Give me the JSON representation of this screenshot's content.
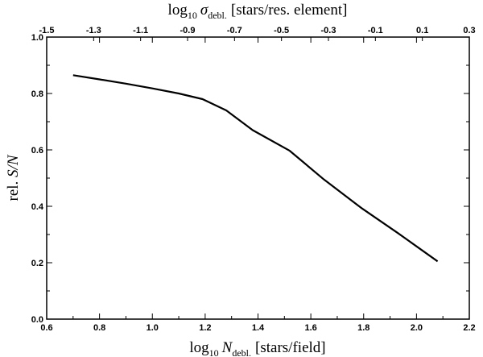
{
  "chart_data": {
    "type": "line",
    "xlabel": {
      "pre": "log",
      "sub": "10",
      "sym": "N",
      "symsub": "debl.",
      "post": "[stars/field]"
    },
    "x2label": {
      "pre": "log",
      "sub": "10",
      "sym": "σ",
      "symsub": "debl.",
      "post": "[stars/res. element]"
    },
    "ylabel": {
      "pre": "rel. ",
      "sym": "S/N"
    },
    "xlim": [
      0.6,
      2.2
    ],
    "ylim": [
      0.0,
      1.0
    ],
    "x2lim": [
      -1.5,
      0.3
    ],
    "xticks": [
      "0.6",
      "0.8",
      "1.0",
      "1.2",
      "1.4",
      "1.6",
      "1.8",
      "2.0",
      "2.2"
    ],
    "x2ticks": [
      "-1.5",
      "-1.3",
      "-1.1",
      "-0.9",
      "-0.7",
      "-0.5",
      "-0.3",
      "-0.1",
      "0.1",
      "0.3"
    ],
    "yticks": [
      "0.0",
      "0.2",
      "0.4",
      "0.6",
      "0.8",
      "1.0"
    ],
    "grid": false,
    "series": [
      {
        "x": [
          0.7,
          0.8,
          0.9,
          1.0,
          1.1,
          1.19,
          1.28,
          1.38,
          1.52,
          1.65,
          1.79,
          1.93,
          2.08
        ],
        "y": [
          0.865,
          0.85,
          0.835,
          0.818,
          0.8,
          0.78,
          0.74,
          0.67,
          0.597,
          0.495,
          0.395,
          0.305,
          0.205
        ]
      }
    ]
  }
}
